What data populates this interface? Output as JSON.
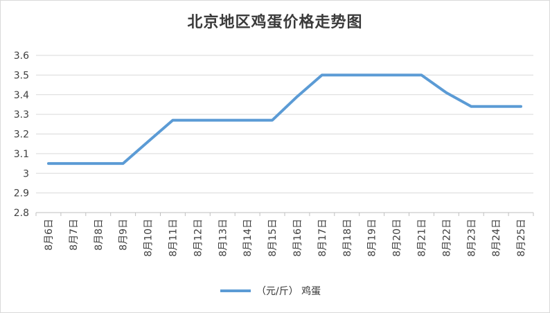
{
  "chart_data": {
    "type": "line",
    "title": "北京地区鸡蛋价格走势图",
    "xlabel": "",
    "ylabel": "",
    "categories": [
      "8月6日",
      "8月7日",
      "8月8日",
      "8月9日",
      "8月10日",
      "8月11日",
      "8月12日",
      "8月13日",
      "8月14日",
      "8月15日",
      "8月16日",
      "8月17日",
      "8月18日",
      "8月19日",
      "8月20日",
      "8月21日",
      "8月22日",
      "8月23日",
      "8月24日",
      "8月25日"
    ],
    "series": [
      {
        "name": "（元/斤）  鸡蛋",
        "values": [
          3.05,
          3.05,
          3.05,
          3.05,
          3.16,
          3.27,
          3.27,
          3.27,
          3.27,
          3.27,
          3.39,
          3.5,
          3.5,
          3.5,
          3.5,
          3.5,
          3.41,
          3.34,
          3.34,
          3.34
        ]
      }
    ],
    "ylim": [
      2.8,
      3.6
    ],
    "yticks": [
      "2.8",
      "2.9",
      "3",
      "3.1",
      "3.2",
      "3.3",
      "3.4",
      "3.5",
      "3.6"
    ],
    "grid": true,
    "legend_position": "bottom",
    "line_color": "#5b9bd5"
  }
}
